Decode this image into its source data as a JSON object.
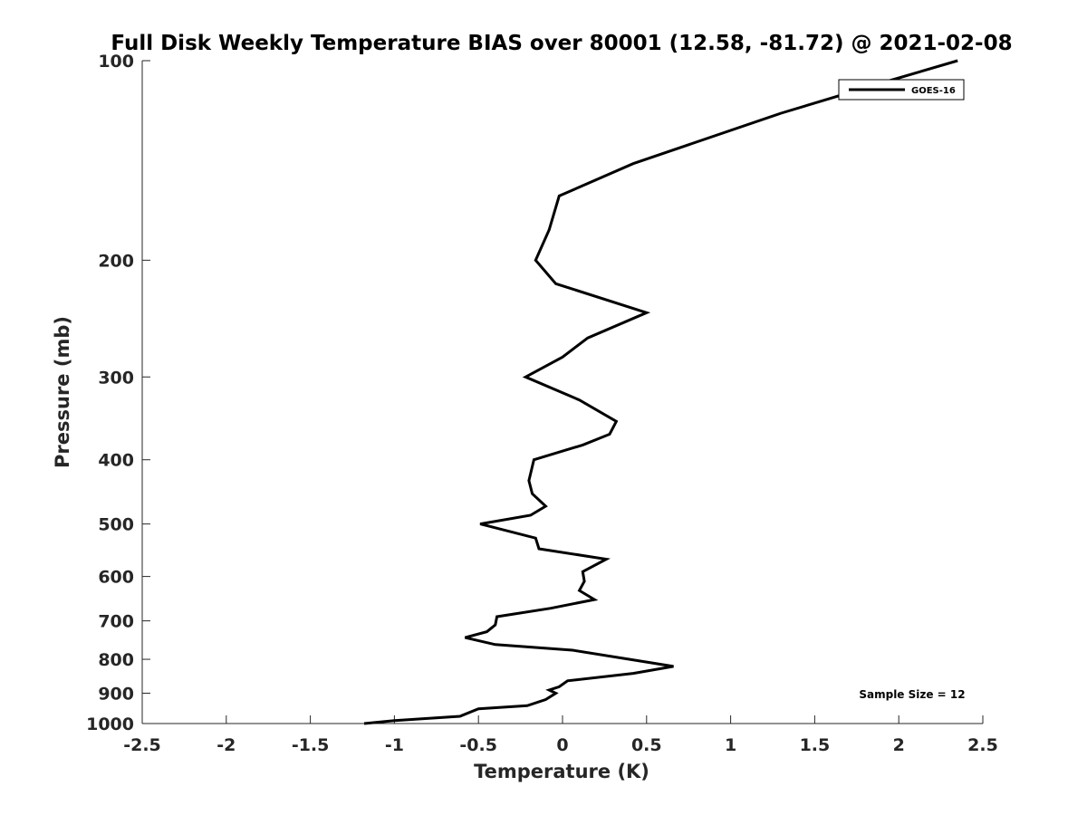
{
  "chart_data": {
    "type": "line",
    "title": "Full Disk Weekly Temperature BIAS over 80001 (12.58, -81.72) @ 2021-02-08",
    "xlabel": "Temperature (K)",
    "ylabel": "Pressure (mb)",
    "xlim": [
      -2.5,
      2.5
    ],
    "ylim": [
      1000,
      100
    ],
    "yscale": "log",
    "y_reversed": true,
    "grid": false,
    "xticks": [
      -2.5,
      -2,
      -1.5,
      -1,
      -0.5,
      0,
      0.5,
      1,
      1.5,
      2,
      2.5
    ],
    "xtick_labels": [
      "-2.5",
      "-2",
      "-1.5",
      "-1",
      "-0.5",
      "0",
      "0.5",
      "1",
      "1.5",
      "2",
      "2.5"
    ],
    "yticks": [
      100,
      200,
      300,
      400,
      500,
      600,
      700,
      800,
      900,
      1000
    ],
    "ytick_labels": [
      "100",
      "200",
      "300",
      "400",
      "500",
      "600",
      "700",
      "800",
      "900",
      "1000"
    ],
    "legend": {
      "placement": "top-right",
      "entries": [
        "GOES-16"
      ]
    },
    "annotation": "Sample Size = 12",
    "series": [
      {
        "name": "GOES-16",
        "color": "#000000",
        "points": [
          {
            "x": 2.35,
            "y": 100
          },
          {
            "x": 1.9,
            "y": 108
          },
          {
            "x": 1.3,
            "y": 120
          },
          {
            "x": 0.42,
            "y": 143
          },
          {
            "x": -0.02,
            "y": 160
          },
          {
            "x": -0.08,
            "y": 180
          },
          {
            "x": -0.16,
            "y": 200
          },
          {
            "x": -0.04,
            "y": 217
          },
          {
            "x": 0.5,
            "y": 240
          },
          {
            "x": 0.15,
            "y": 262
          },
          {
            "x": 0.0,
            "y": 280
          },
          {
            "x": -0.22,
            "y": 300
          },
          {
            "x": 0.1,
            "y": 325
          },
          {
            "x": 0.32,
            "y": 350
          },
          {
            "x": 0.28,
            "y": 366
          },
          {
            "x": 0.12,
            "y": 380
          },
          {
            "x": -0.17,
            "y": 400
          },
          {
            "x": -0.2,
            "y": 430
          },
          {
            "x": -0.18,
            "y": 450
          },
          {
            "x": -0.1,
            "y": 470
          },
          {
            "x": -0.19,
            "y": 485
          },
          {
            "x": -0.49,
            "y": 500
          },
          {
            "x": -0.16,
            "y": 525
          },
          {
            "x": -0.14,
            "y": 545
          },
          {
            "x": 0.26,
            "y": 565
          },
          {
            "x": 0.12,
            "y": 590
          },
          {
            "x": 0.13,
            "y": 610
          },
          {
            "x": 0.1,
            "y": 630
          },
          {
            "x": 0.19,
            "y": 650
          },
          {
            "x": -0.07,
            "y": 670
          },
          {
            "x": -0.39,
            "y": 690
          },
          {
            "x": -0.4,
            "y": 710
          },
          {
            "x": -0.45,
            "y": 727
          },
          {
            "x": -0.58,
            "y": 742
          },
          {
            "x": -0.4,
            "y": 760
          },
          {
            "x": 0.06,
            "y": 775
          },
          {
            "x": 0.4,
            "y": 800
          },
          {
            "x": 0.66,
            "y": 820
          },
          {
            "x": 0.42,
            "y": 840
          },
          {
            "x": 0.03,
            "y": 862
          },
          {
            "x": -0.02,
            "y": 880
          },
          {
            "x": -0.08,
            "y": 890
          },
          {
            "x": -0.04,
            "y": 900
          },
          {
            "x": -0.1,
            "y": 920
          },
          {
            "x": -0.21,
            "y": 940
          },
          {
            "x": -0.5,
            "y": 950
          },
          {
            "x": -0.61,
            "y": 975
          },
          {
            "x": -1.0,
            "y": 990
          },
          {
            "x": -1.18,
            "y": 1000
          }
        ]
      }
    ]
  }
}
